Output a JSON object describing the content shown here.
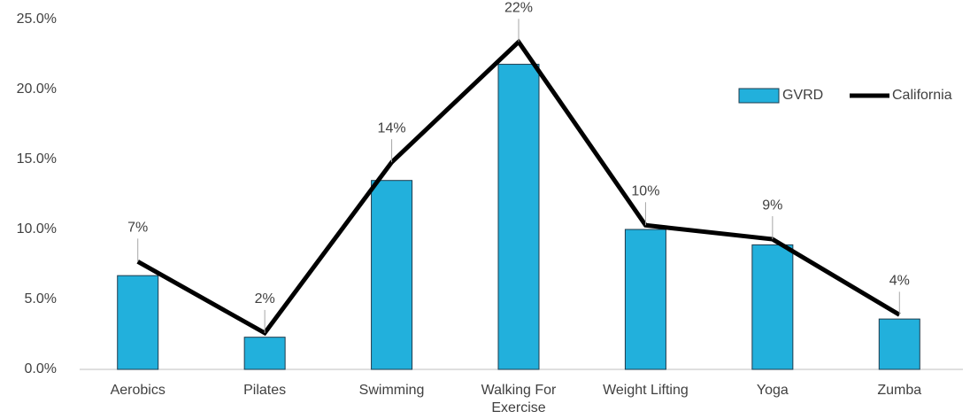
{
  "chart_data": {
    "type": "bar_line",
    "categories": [
      "Aerobics",
      "Pilates",
      "Swimming",
      "Walking For Exercise",
      "Weight Lifting",
      "Yoga",
      "Zumba"
    ],
    "series": [
      {
        "name": "GVRD",
        "type": "bar",
        "color": "#22b0dc",
        "values": [
          6.7,
          2.3,
          13.5,
          21.8,
          10.0,
          8.9,
          3.6
        ],
        "value_labels": [
          "7%",
          "2%",
          "14%",
          "22%",
          "10%",
          "9%",
          "4%"
        ]
      },
      {
        "name": "California",
        "type": "line",
        "color": "#000000",
        "values": [
          7.7,
          2.6,
          14.8,
          23.4,
          10.3,
          9.3,
          3.9
        ]
      }
    ],
    "ylim": [
      0,
      25
    ],
    "yticks": [
      {
        "value": 0,
        "label": "0.0%"
      },
      {
        "value": 5,
        "label": "5.0%"
      },
      {
        "value": 10,
        "label": "10.0%"
      },
      {
        "value": 15,
        "label": "15.0%"
      },
      {
        "value": 20,
        "label": "20.0%"
      },
      {
        "value": 25,
        "label": "25.0%"
      }
    ],
    "grid": false,
    "legend": "right"
  }
}
